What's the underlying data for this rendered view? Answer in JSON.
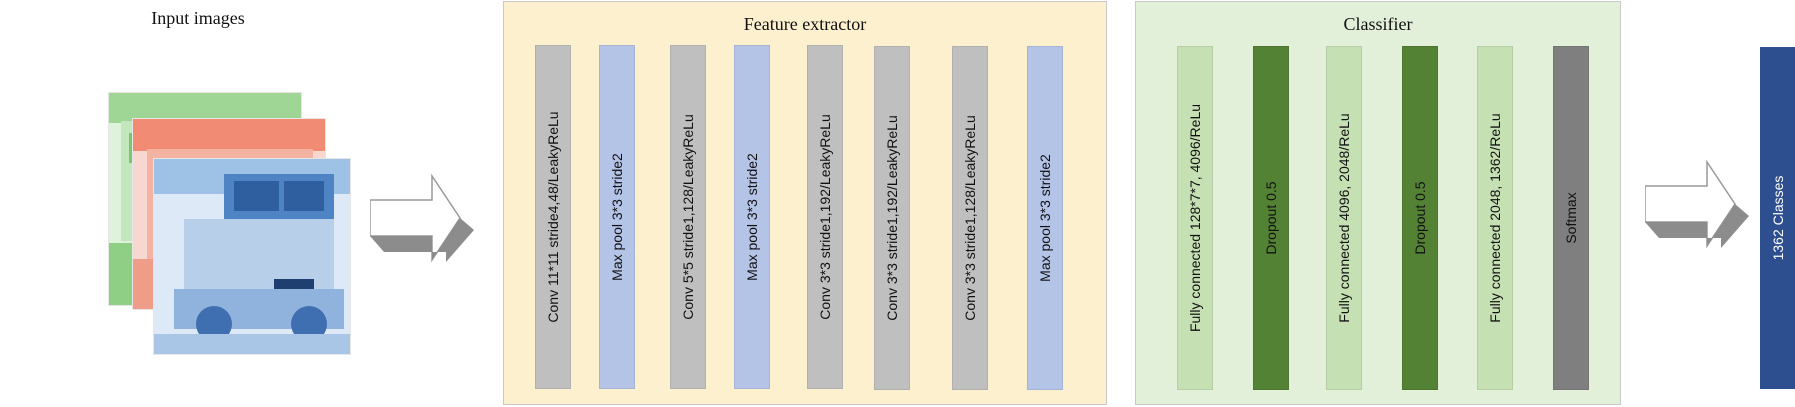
{
  "input": {
    "title": "Input images"
  },
  "feature_extractor": {
    "title": "Feature extractor",
    "colors": {
      "panel_bg": "#fdf0cf",
      "panel_border": "#c9c9c9",
      "conv": "#bfbfbf",
      "pool": "#b4c4e7"
    },
    "layers": [
      {
        "label": "Conv 11*11 stride4,48/LeakyReLu",
        "kind": "conv"
      },
      {
        "label": "Max pool 3*3 stride2",
        "kind": "pool"
      },
      {
        "label": "Conv 5*5 stride1,128/LeakyReLu",
        "kind": "conv"
      },
      {
        "label": "Max pool 3*3 stride2",
        "kind": "pool"
      },
      {
        "label": "Conv 3*3 stride1,192/LeakyReLu",
        "kind": "conv"
      },
      {
        "label": "Conv 3*3 stride1,192/LeakyReLu",
        "kind": "conv"
      },
      {
        "label": "Conv 3*3 stride1,128/LeakyReLu",
        "kind": "conv"
      },
      {
        "label": "Max pool 3*3 stride2",
        "kind": "pool"
      }
    ]
  },
  "classifier": {
    "title": "Classifier",
    "colors": {
      "panel_bg": "#e2efd9",
      "panel_border": "#c9c9c9",
      "fc": "#c5e0b3",
      "dropout": "#548235",
      "softmax": "#7f7f7f"
    },
    "layers": [
      {
        "label": "Fully connected 128*7*7, 4096/ReLu",
        "kind": "fc"
      },
      {
        "label": "Dropout 0.5",
        "kind": "dropout"
      },
      {
        "label": "Fully connected 4096, 2048/ReLu",
        "kind": "fc"
      },
      {
        "label": "Dropout 0.5",
        "kind": "dropout"
      },
      {
        "label": "Fully connected 2048, 1362/ReLu",
        "kind": "fc"
      },
      {
        "label": "Softmax",
        "kind": "softmax"
      }
    ]
  },
  "output": {
    "label": "1362 Classes",
    "color": "#2e4f8f"
  }
}
